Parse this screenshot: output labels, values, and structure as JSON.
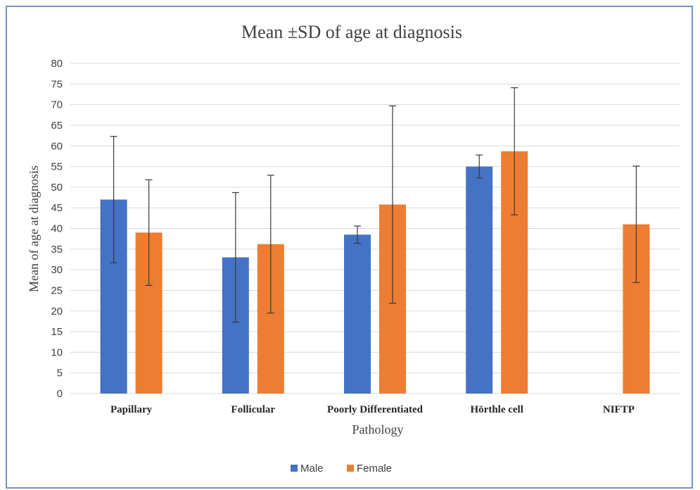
{
  "chart_data": {
    "type": "bar",
    "title": "Mean ±SD of age at diagnosis",
    "xlabel": "Pathology",
    "ylabel": "Mean of age at diagnosis",
    "ylim": [
      0,
      80
    ],
    "yticks": [
      0,
      5,
      10,
      15,
      20,
      25,
      30,
      35,
      40,
      45,
      50,
      55,
      60,
      65,
      70,
      75,
      80
    ],
    "grid": true,
    "legend_position": "bottom",
    "categories": [
      "Papillary",
      "Follicular",
      "Poorly Differentiated",
      "Hörthle cell",
      "NIFTP"
    ],
    "series": [
      {
        "name": "Male",
        "color": "#4472c4",
        "values": [
          47,
          33,
          38.5,
          55,
          null
        ],
        "sd": [
          15.3,
          15.7,
          2.1,
          2.8,
          null
        ]
      },
      {
        "name": "Female",
        "color": "#ed7d31",
        "values": [
          39,
          36.2,
          45.8,
          58.7,
          41
        ],
        "sd": [
          12.8,
          16.7,
          23.9,
          15.4,
          14.1
        ]
      }
    ]
  }
}
